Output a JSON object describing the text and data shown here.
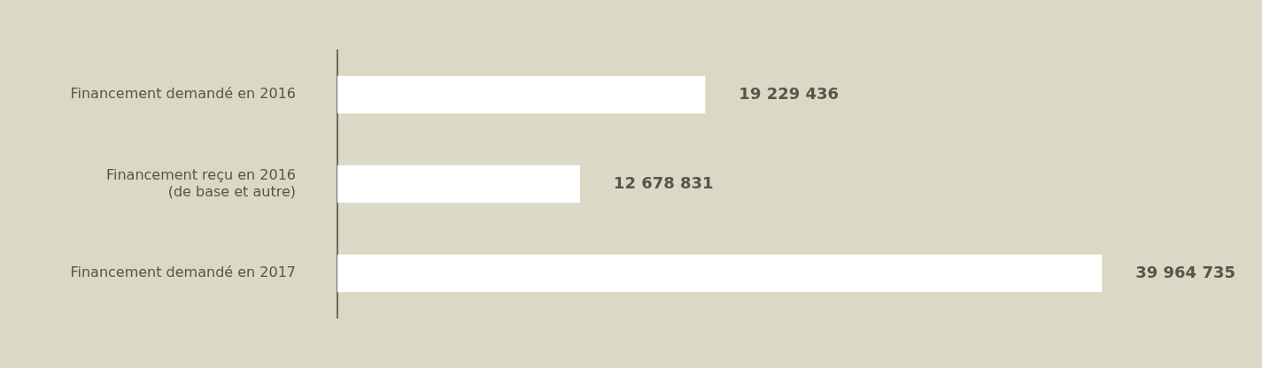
{
  "chart_data": {
    "type": "bar",
    "orientation": "horizontal",
    "categories": [
      "Financement demandé en 2016",
      "Financement reçu en 2016\n(de base et autre)",
      "Financement demandé en 2017"
    ],
    "values": [
      19229436,
      12678831,
      39964735
    ],
    "value_labels": [
      "19 229 436",
      "12 678 831",
      "39 964 735"
    ],
    "color": "#ffffff",
    "tick_labels": "y",
    "legend": false
  }
}
